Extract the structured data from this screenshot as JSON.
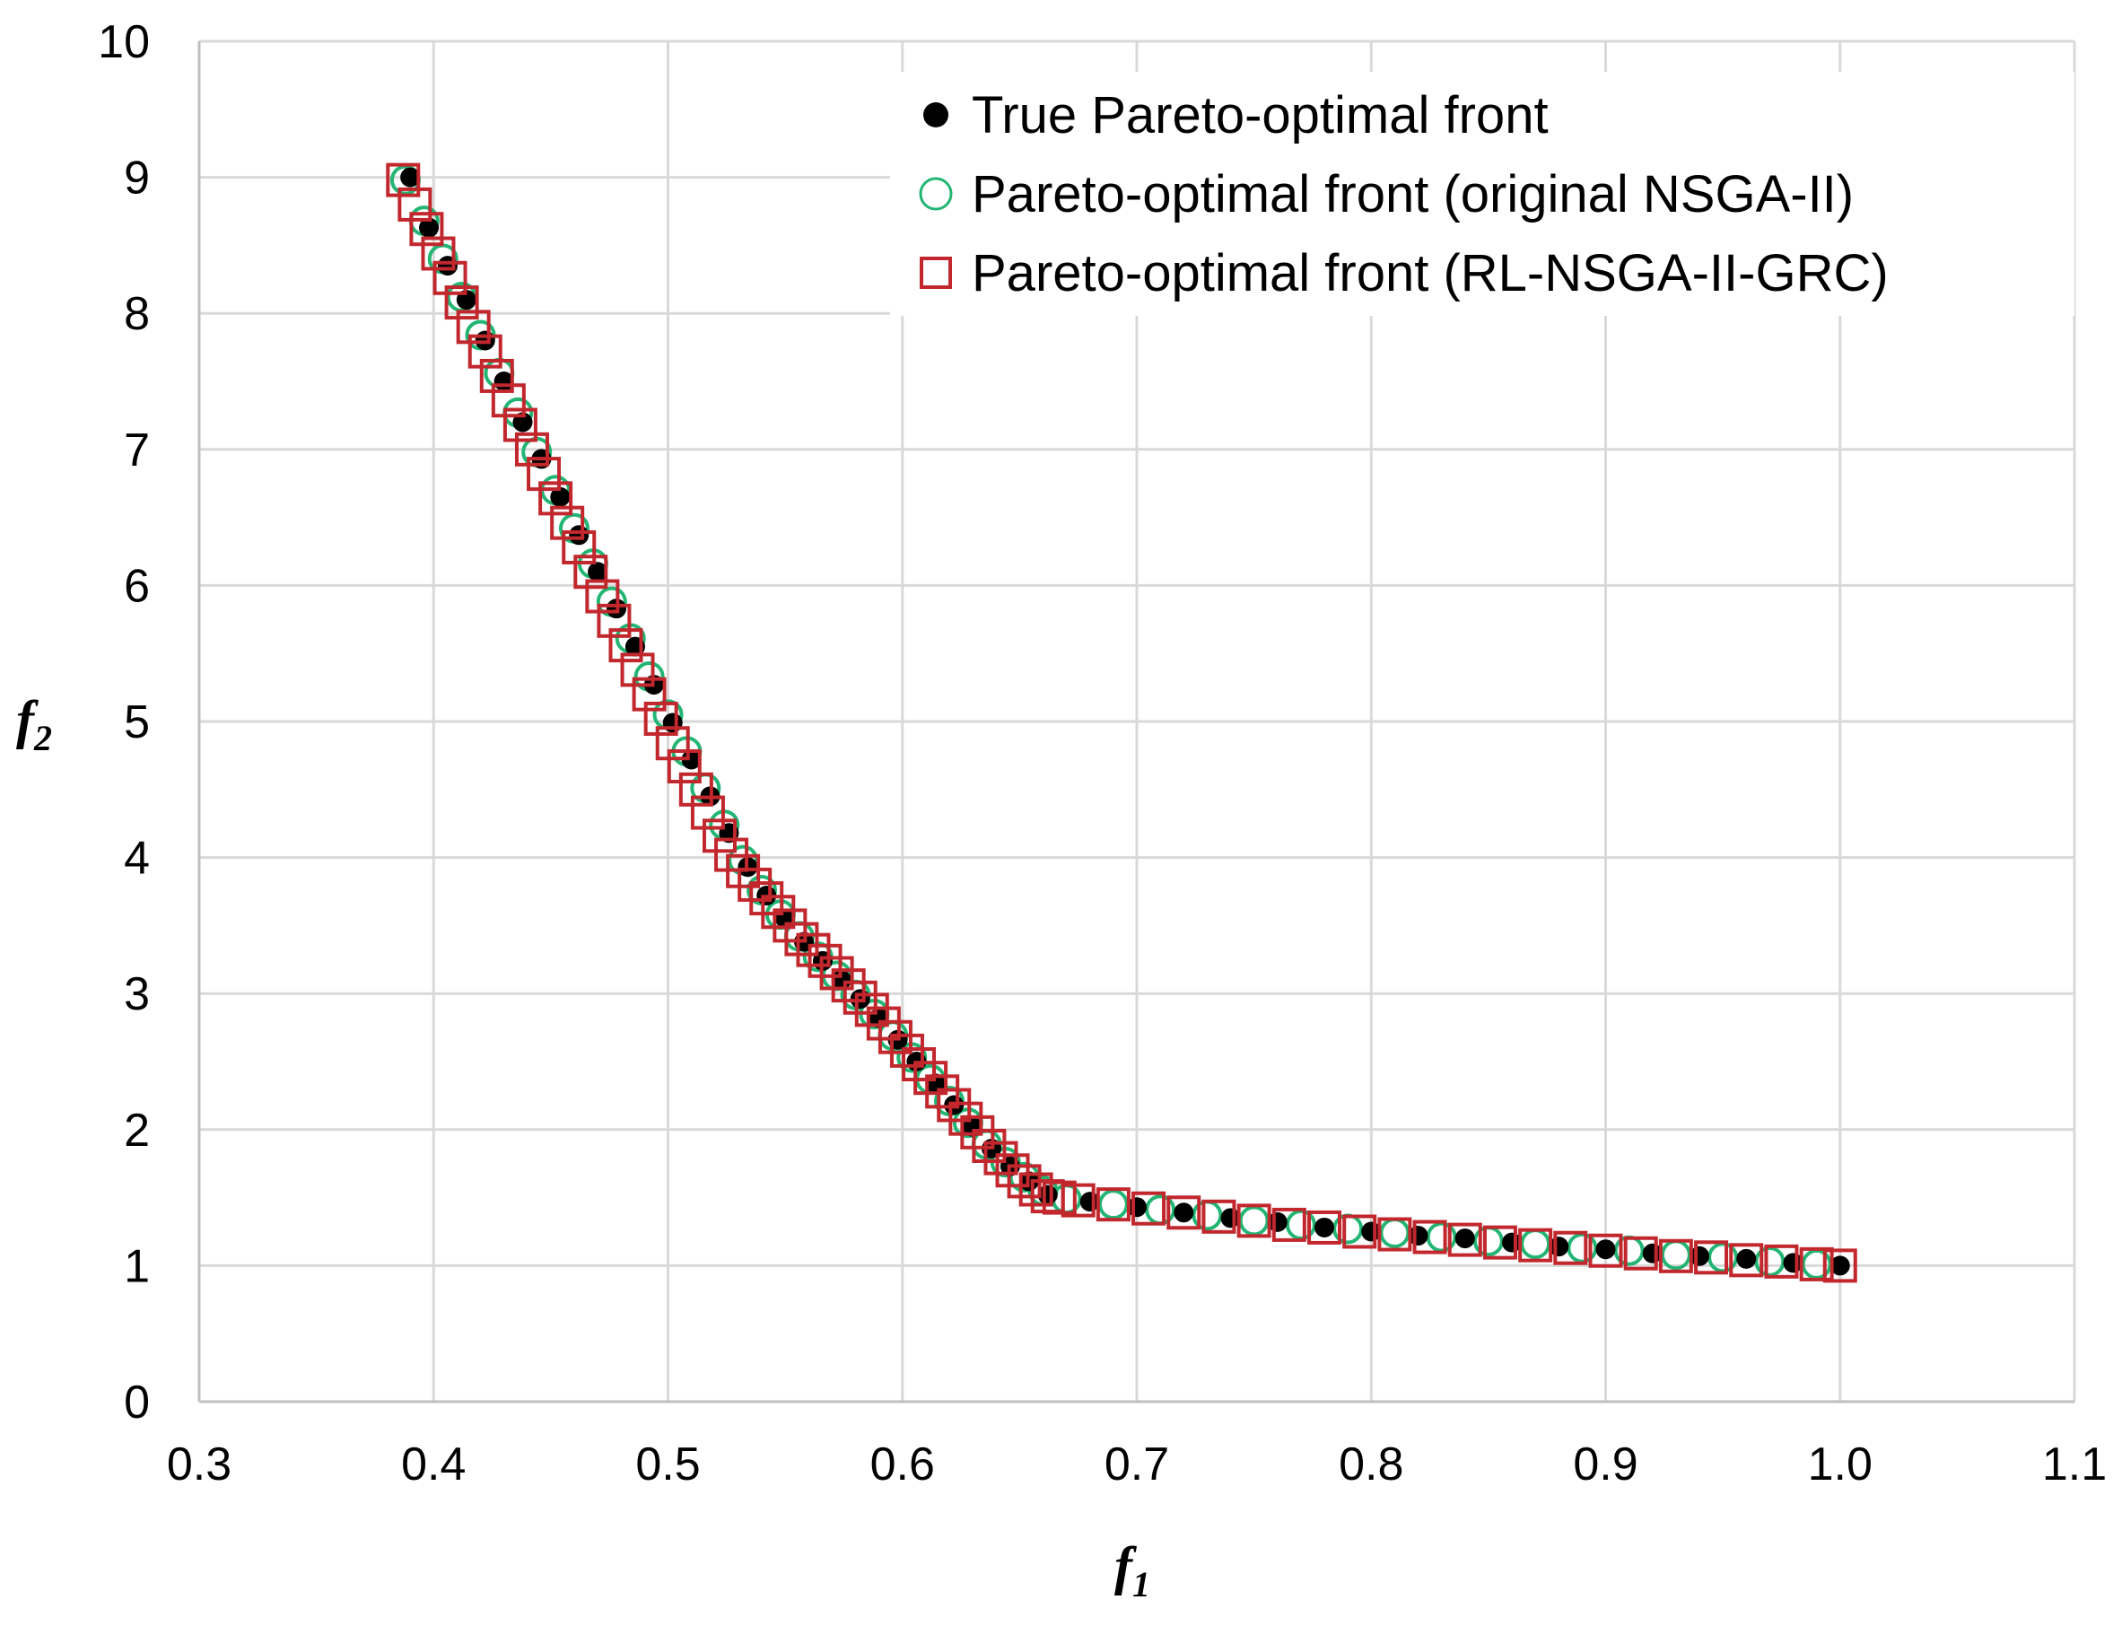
{
  "chart_data": {
    "type": "scatter",
    "title": "",
    "xlabel": {
      "base": "f",
      "sub": "1"
    },
    "ylabel": {
      "base": "f",
      "sub": "2"
    },
    "xlim": [
      0.3,
      1.1
    ],
    "ylim": [
      0,
      10
    ],
    "x_ticks": [
      "0.3",
      "0.4",
      "0.5",
      "0.6",
      "0.7",
      "0.8",
      "0.9",
      "1.0",
      "1.1"
    ],
    "y_ticks": [
      "0",
      "1",
      "2",
      "3",
      "4",
      "5",
      "6",
      "7",
      "8",
      "9",
      "10"
    ],
    "grid": true,
    "legend_position": "top-right",
    "front_shape": {
      "description": "steep segment from (0.39, 9.0) to (0.665, 1.5), flat segment from (0.665, 1.5) to (1.0, 1.0)",
      "knots": [
        [
          0.39,
          9.0
        ],
        [
          0.5,
          5.15
        ],
        [
          0.6,
          2.8
        ],
        [
          0.665,
          1.5
        ],
        [
          0.8,
          1.25
        ],
        [
          1.0,
          1.0
        ]
      ]
    },
    "series": [
      {
        "name": "True Pareto-optimal front",
        "marker": "filled-circle",
        "color": "#000000",
        "x": [
          0.39,
          0.398,
          0.406,
          0.414,
          0.422,
          0.43,
          0.438,
          0.446,
          0.454,
          0.462,
          0.47,
          0.478,
          0.486,
          0.494,
          0.502,
          0.51,
          0.518,
          0.526,
          0.534,
          0.542,
          0.55,
          0.558,
          0.566,
          0.574,
          0.582,
          0.59,
          0.598,
          0.606,
          0.614,
          0.622,
          0.63,
          0.638,
          0.646,
          0.654,
          0.662,
          0.68,
          0.7,
          0.72,
          0.74,
          0.76,
          0.78,
          0.8,
          0.82,
          0.84,
          0.86,
          0.88,
          0.9,
          0.92,
          0.94,
          0.96,
          0.98,
          1.0
        ],
        "y": [
          9.0,
          8.63,
          8.35,
          8.1,
          7.8,
          7.5,
          7.2,
          6.93,
          6.65,
          6.37,
          6.1,
          5.83,
          5.55,
          5.27,
          4.99,
          4.72,
          4.45,
          4.18,
          3.93,
          3.72,
          3.55,
          3.38,
          3.24,
          3.1,
          2.96,
          2.82,
          2.66,
          2.5,
          2.34,
          2.18,
          2.02,
          1.86,
          1.73,
          1.62,
          1.52,
          1.47,
          1.43,
          1.39,
          1.35,
          1.32,
          1.28,
          1.25,
          1.22,
          1.2,
          1.17,
          1.14,
          1.12,
          1.09,
          1.07,
          1.05,
          1.02,
          1.0
        ]
      },
      {
        "name": "Pareto-optimal front (original NSGA-II)",
        "marker": "open-circle",
        "color": "#22b573",
        "x": [
          0.388,
          0.396,
          0.404,
          0.412,
          0.42,
          0.428,
          0.436,
          0.444,
          0.452,
          0.46,
          0.468,
          0.476,
          0.484,
          0.492,
          0.5,
          0.508,
          0.516,
          0.524,
          0.532,
          0.54,
          0.548,
          0.556,
          0.564,
          0.572,
          0.58,
          0.588,
          0.596,
          0.604,
          0.612,
          0.62,
          0.628,
          0.636,
          0.644,
          0.652,
          0.66,
          0.67,
          0.69,
          0.71,
          0.73,
          0.75,
          0.77,
          0.79,
          0.81,
          0.83,
          0.85,
          0.87,
          0.89,
          0.91,
          0.93,
          0.95,
          0.97,
          0.99
        ],
        "y": [
          8.98,
          8.68,
          8.4,
          8.12,
          7.84,
          7.56,
          7.27,
          6.98,
          6.7,
          6.42,
          6.16,
          5.88,
          5.61,
          5.33,
          5.05,
          4.78,
          4.51,
          4.24,
          3.98,
          3.76,
          3.58,
          3.42,
          3.27,
          3.13,
          2.99,
          2.85,
          2.69,
          2.53,
          2.37,
          2.21,
          2.05,
          1.89,
          1.76,
          1.65,
          1.55,
          1.49,
          1.45,
          1.41,
          1.37,
          1.33,
          1.3,
          1.27,
          1.24,
          1.21,
          1.18,
          1.16,
          1.13,
          1.11,
          1.08,
          1.06,
          1.03,
          1.01
        ]
      },
      {
        "name": "Pareto-optimal front (RL-NSGA-II-GRC)",
        "marker": "open-square",
        "color": "#c1272d",
        "x": [
          0.387,
          0.392,
          0.397,
          0.402,
          0.407,
          0.412,
          0.417,
          0.422,
          0.427,
          0.432,
          0.437,
          0.442,
          0.447,
          0.452,
          0.457,
          0.462,
          0.467,
          0.472,
          0.477,
          0.482,
          0.487,
          0.492,
          0.497,
          0.502,
          0.507,
          0.512,
          0.517,
          0.522,
          0.527,
          0.532,
          0.537,
          0.542,
          0.547,
          0.552,
          0.557,
          0.562,
          0.567,
          0.572,
          0.577,
          0.582,
          0.587,
          0.592,
          0.597,
          0.602,
          0.607,
          0.612,
          0.617,
          0.622,
          0.627,
          0.632,
          0.637,
          0.642,
          0.647,
          0.652,
          0.657,
          0.662,
          0.667,
          0.675,
          0.69,
          0.705,
          0.72,
          0.735,
          0.75,
          0.765,
          0.78,
          0.795,
          0.81,
          0.825,
          0.84,
          0.855,
          0.87,
          0.885,
          0.9,
          0.915,
          0.93,
          0.945,
          0.96,
          0.975,
          0.99,
          1.0
        ],
        "y": [
          8.98,
          8.8,
          8.62,
          8.44,
          8.26,
          8.08,
          7.9,
          7.72,
          7.54,
          7.36,
          7.18,
          7.0,
          6.82,
          6.64,
          6.46,
          6.28,
          6.1,
          5.92,
          5.74,
          5.56,
          5.38,
          5.2,
          5.02,
          4.84,
          4.67,
          4.5,
          4.33,
          4.16,
          4.02,
          3.9,
          3.8,
          3.7,
          3.6,
          3.5,
          3.4,
          3.32,
          3.24,
          3.15,
          3.06,
          2.97,
          2.88,
          2.78,
          2.68,
          2.58,
          2.48,
          2.38,
          2.28,
          2.18,
          2.08,
          1.98,
          1.88,
          1.79,
          1.7,
          1.62,
          1.56,
          1.51,
          1.5,
          1.48,
          1.45,
          1.42,
          1.39,
          1.36,
          1.33,
          1.3,
          1.28,
          1.25,
          1.23,
          1.21,
          1.19,
          1.17,
          1.15,
          1.13,
          1.11,
          1.09,
          1.07,
          1.06,
          1.04,
          1.03,
          1.01,
          1.0
        ]
      }
    ]
  }
}
